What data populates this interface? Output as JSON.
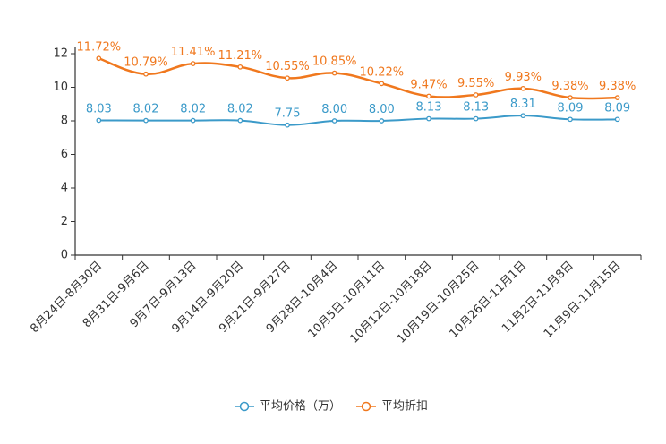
{
  "chart_data": {
    "type": "line",
    "categories": [
      "8月24日-8月30日",
      "8月31日-9月6日",
      "9月7日-9月13日",
      "9月14日-9月20日",
      "9月21日-9月27日",
      "9月28日-10月4日",
      "10月5日-10月11日",
      "10月12日-10月18日",
      "10月19日-10月25日",
      "10月26日-11月1日",
      "11月2日-11月8日",
      "11月9日-11月15日"
    ],
    "series": [
      {
        "name": "平均价格（万）",
        "color": "#3b9ac9",
        "values": [
          8.03,
          8.02,
          8.02,
          8.02,
          7.75,
          8.0,
          8.0,
          8.13,
          8.13,
          8.31,
          8.09,
          8.09
        ],
        "labels": [
          "8.03",
          "8.02",
          "8.02",
          "8.02",
          "7.75",
          "8.00",
          "8.00",
          "8.13",
          "8.13",
          "8.31",
          "8.09",
          "8.09"
        ]
      },
      {
        "name": "平均折扣",
        "color": "#f0781e",
        "values": [
          11.72,
          10.79,
          11.41,
          11.21,
          10.55,
          10.85,
          10.22,
          9.47,
          9.55,
          9.93,
          9.38,
          9.38
        ],
        "labels": [
          "11.72%",
          "10.79%",
          "11.41%",
          "11.21%",
          "10.55%",
          "10.85%",
          "10.22%",
          "9.47%",
          "9.55%",
          "9.93%",
          "9.38%",
          "9.38%"
        ]
      }
    ],
    "yticks": [
      "0",
      "2",
      "4",
      "6",
      "8",
      "10",
      "12"
    ],
    "ylim": [
      0,
      12
    ],
    "legend_position": "bottom-center",
    "title": "",
    "xlabel": "",
    "ylabel": ""
  }
}
